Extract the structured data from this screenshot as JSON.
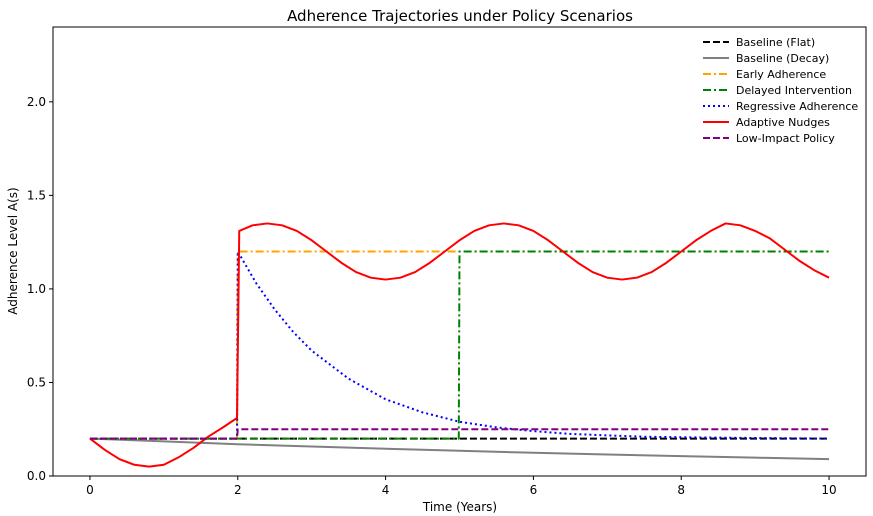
{
  "chart_data": {
    "type": "line",
    "title": "Adherence Trajectories under Policy Scenarios",
    "xlabel": "Time (Years)",
    "ylabel": "Adherence Level A(s)",
    "xlim": [
      -0.5,
      10.5
    ],
    "ylim": [
      0.0,
      2.4
    ],
    "xticks": [
      0,
      2,
      4,
      6,
      8,
      10
    ],
    "xtick_labels": [
      "0",
      "2",
      "4",
      "6",
      "8",
      "10"
    ],
    "yticks": [
      0.0,
      0.5,
      1.0,
      1.5,
      2.0
    ],
    "ytick_labels": [
      "0.0",
      "0.5",
      "1.0",
      "1.5",
      "2.0"
    ],
    "grid": false,
    "legend_position": "top-right",
    "series": [
      {
        "name": "Baseline (Flat)",
        "color": "#000000",
        "dash": "dashed",
        "x": [
          0,
          10
        ],
        "y": [
          0.2,
          0.2
        ]
      },
      {
        "name": "Baseline (Decay)",
        "color": "#808080",
        "dash": "solid",
        "x": [
          0,
          1,
          2,
          3,
          4,
          5,
          6,
          7,
          8,
          9,
          10
        ],
        "y": [
          0.2,
          0.185,
          0.17,
          0.158,
          0.146,
          0.135,
          0.124,
          0.115,
          0.106,
          0.098,
          0.09
        ]
      },
      {
        "name": "Early Adherence",
        "color": "#FFA500",
        "dash": "dashdot",
        "x": [
          0,
          1.99,
          2.0,
          10
        ],
        "y": [
          0.2,
          0.2,
          1.2,
          1.2
        ]
      },
      {
        "name": "Delayed Intervention",
        "color": "#008000",
        "dash": "dashdot",
        "x": [
          0,
          4.99,
          5.0,
          10
        ],
        "y": [
          0.2,
          0.2,
          1.2,
          1.2
        ]
      },
      {
        "name": "Regressive Adherence",
        "color": "#0000FF",
        "dash": "dotted",
        "x": [
          0,
          1.99,
          2.0,
          2.25,
          2.5,
          2.75,
          3.0,
          3.5,
          4.0,
          4.5,
          5.0,
          5.5,
          6.0,
          6.5,
          7.0,
          7.5,
          8.0,
          9.0,
          10.0
        ],
        "y": [
          0.2,
          0.2,
          1.2,
          1.03,
          0.89,
          0.77,
          0.67,
          0.52,
          0.41,
          0.34,
          0.29,
          0.26,
          0.24,
          0.225,
          0.217,
          0.21,
          0.207,
          0.203,
          0.2
        ]
      },
      {
        "name": "Adaptive Nudges",
        "color": "#FF0000",
        "dash": "solid",
        "x": [
          0,
          0.2,
          0.4,
          0.6,
          0.8,
          1.0,
          1.2,
          1.4,
          1.6,
          1.8,
          1.99,
          2.02,
          2.2,
          2.4,
          2.6,
          2.8,
          3.0,
          3.2,
          3.4,
          3.6,
          3.8,
          4.0,
          4.2,
          4.4,
          4.6,
          4.8,
          5.0,
          5.2,
          5.4,
          5.6,
          5.8,
          6.0,
          6.2,
          6.4,
          6.6,
          6.8,
          7.0,
          7.2,
          7.4,
          7.6,
          7.8,
          8.0,
          8.2,
          8.4,
          8.6,
          8.8,
          9.0,
          9.2,
          9.4,
          9.6,
          9.8,
          10.0
        ],
        "y": [
          0.2,
          0.14,
          0.09,
          0.06,
          0.05,
          0.06,
          0.1,
          0.15,
          0.21,
          0.26,
          0.31,
          1.31,
          1.34,
          1.35,
          1.34,
          1.31,
          1.26,
          1.2,
          1.14,
          1.09,
          1.06,
          1.05,
          1.06,
          1.09,
          1.14,
          1.2,
          1.26,
          1.31,
          1.34,
          1.35,
          1.34,
          1.31,
          1.26,
          1.2,
          1.14,
          1.09,
          1.06,
          1.05,
          1.06,
          1.09,
          1.14,
          1.2,
          1.26,
          1.31,
          1.35,
          1.34,
          1.31,
          1.27,
          1.21,
          1.15,
          1.1,
          1.06
        ]
      },
      {
        "name": "Low-Impact Policy",
        "color": "#800080",
        "dash": "dashed",
        "x": [
          0,
          1.99,
          2.0,
          10
        ],
        "y": [
          0.2,
          0.2,
          0.25,
          0.25
        ]
      }
    ]
  }
}
